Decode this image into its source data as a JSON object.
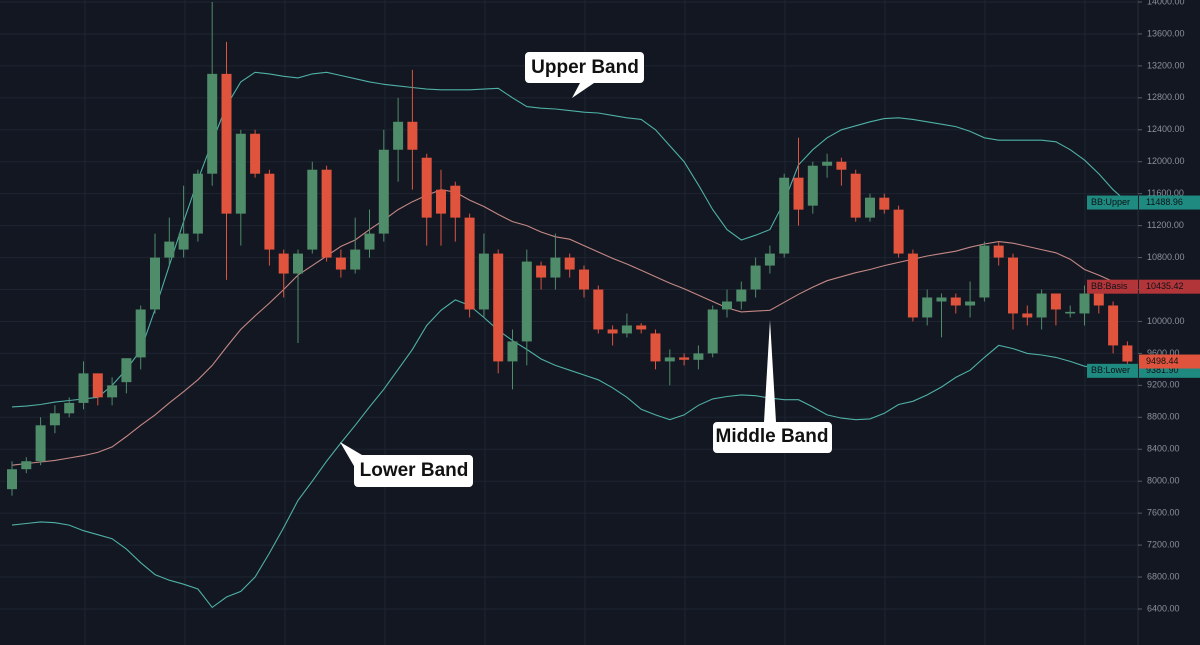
{
  "chart_data": {
    "type": "candlestick",
    "categories": [
      null,
      null,
      null,
      null,
      null,
      null,
      null,
      null,
      null,
      null,
      null,
      null,
      null,
      null,
      null,
      null,
      null,
      null,
      null,
      null,
      null,
      null,
      null,
      null,
      null,
      null,
      null,
      null,
      null,
      null,
      null,
      null,
      null,
      null,
      null,
      null,
      null,
      null,
      null,
      null,
      null,
      null,
      null,
      null,
      null,
      null,
      null,
      null,
      null,
      null,
      null,
      null,
      null,
      null,
      null,
      null,
      null,
      null,
      null,
      null,
      null,
      null,
      null,
      null,
      null,
      null,
      null,
      null,
      null,
      null,
      null,
      null,
      null,
      null,
      null,
      null,
      null,
      null,
      null
    ],
    "open": [
      7900,
      8150,
      8250,
      8700,
      8850,
      8980,
      9350,
      9050,
      9240,
      9550,
      10150,
      10800,
      10900,
      11100,
      11850,
      13100,
      11350,
      12350,
      11850,
      10850,
      10600,
      10900,
      11900,
      10800,
      10650,
      10900,
      11100,
      12150,
      12500,
      12050,
      11650,
      11700,
      11300,
      10150,
      10850,
      9500,
      9750,
      10700,
      10550,
      10800,
      10650,
      10400,
      9900,
      9850,
      9950,
      9850,
      9500,
      9550,
      9520,
      9600,
      10150,
      10250,
      10400,
      10700,
      10850,
      11800,
      11450,
      11950,
      12000,
      11850,
      11300,
      11550,
      11400,
      10850,
      10050,
      10250,
      10300,
      10200,
      10300,
      10950,
      10800,
      10100,
      10050,
      10350,
      10100,
      10100,
      10350,
      10200,
      9700
    ],
    "high": [
      8250,
      8300,
      8800,
      8950,
      9050,
      9500,
      9350,
      9300,
      9500,
      10200,
      11100,
      11300,
      11700,
      11900,
      14000,
      13500,
      12400,
      12400,
      11900,
      10900,
      10900,
      12000,
      11950,
      10900,
      11300,
      11400,
      12400,
      12800,
      13150,
      12100,
      11900,
      11750,
      11350,
      11100,
      10900,
      9900,
      10900,
      10750,
      11100,
      10850,
      10700,
      10450,
      9950,
      10100,
      9980,
      9900,
      9650,
      9600,
      9700,
      10200,
      10400,
      10500,
      10800,
      10950,
      11850,
      12300,
      12000,
      12100,
      12050,
      11900,
      11600,
      11600,
      11450,
      10900,
      10400,
      10350,
      10350,
      10500,
      11000,
      11000,
      10850,
      10200,
      10400,
      10350,
      10200,
      10450,
      10400,
      10250,
      9750
    ],
    "low": [
      7820,
      8100,
      8200,
      8600,
      8800,
      8900,
      8950,
      8950,
      9100,
      9400,
      10100,
      10700,
      10800,
      11000,
      11700,
      10520,
      10950,
      11800,
      10700,
      10300,
      9730,
      10850,
      10750,
      10550,
      10600,
      10800,
      11000,
      11750,
      11650,
      10950,
      10950,
      11000,
      10050,
      10050,
      9350,
      9150,
      9450,
      10400,
      10400,
      10550,
      10300,
      9850,
      9700,
      9800,
      9850,
      9400,
      9200,
      9450,
      9400,
      9550,
      10050,
      10150,
      10300,
      10600,
      10800,
      11200,
      11350,
      11800,
      11700,
      11250,
      11250,
      11350,
      10800,
      10000,
      9950,
      9800,
      10100,
      10050,
      10250,
      10700,
      9900,
      9950,
      9900,
      9950,
      10050,
      9950,
      10100,
      9600,
      9450
    ],
    "close": [
      8150,
      8250,
      8700,
      8850,
      8980,
      9350,
      9050,
      9200,
      9540,
      10150,
      10800,
      11000,
      11100,
      11850,
      13100,
      11350,
      12350,
      11850,
      10900,
      10600,
      10850,
      11900,
      10800,
      10650,
      10900,
      11100,
      12150,
      12500,
      12150,
      11300,
      11350,
      11300,
      10150,
      10850,
      9500,
      9750,
      10750,
      10550,
      10800,
      10650,
      10400,
      9900,
      9850,
      9950,
      9900,
      9500,
      9550,
      9520,
      9600,
      10150,
      10250,
      10400,
      10700,
      10850,
      11800,
      11400,
      11950,
      12000,
      11900,
      11300,
      11550,
      11400,
      10850,
      10050,
      10300,
      10300,
      10200,
      10250,
      10950,
      10800,
      10100,
      10050,
      10350,
      10150,
      10120,
      10350,
      10200,
      9700,
      9498.44
    ],
    "up_color": "#4f8c69",
    "down_color": "#e0533d",
    "bands": [
      {
        "name": "BB:Upper",
        "color": "#4fb0a6",
        "tag_color": "#1f8a80",
        "values": [
          8930,
          8940,
          8960,
          8990,
          9010,
          9030,
          9050,
          9200,
          9400,
          9640,
          10150,
          10700,
          11250,
          11770,
          12250,
          12700,
          13000,
          13120,
          13100,
          13070,
          13050,
          13100,
          13120,
          13080,
          13040,
          13000,
          12970,
          12950,
          12930,
          12910,
          12900,
          12900,
          12900,
          12910,
          12920,
          12800,
          12690,
          12670,
          12660,
          12640,
          12620,
          12610,
          12580,
          12550,
          12530,
          12400,
          12200,
          12000,
          11710,
          11400,
          11150,
          11020,
          11080,
          11150,
          11500,
          11960,
          12150,
          12300,
          12400,
          12450,
          12500,
          12540,
          12550,
          12530,
          12500,
          12470,
          12440,
          12380,
          12300,
          12270,
          12270,
          12270,
          12270,
          12250,
          12150,
          12020,
          11850,
          11650,
          11488.96
        ]
      },
      {
        "name": "BB:Basis",
        "color": "#c48884",
        "tag_color": "#b2353a",
        "values": [
          8200,
          8220,
          8240,
          8260,
          8290,
          8320,
          8360,
          8430,
          8560,
          8700,
          8830,
          8980,
          9120,
          9270,
          9450,
          9680,
          9900,
          10070,
          10230,
          10400,
          10580,
          10700,
          10820,
          10940,
          11020,
          11150,
          11270,
          11400,
          11500,
          11580,
          11650,
          11620,
          11520,
          11440,
          11340,
          11250,
          11200,
          11120,
          11060,
          11030,
          10950,
          10870,
          10790,
          10720,
          10640,
          10560,
          10480,
          10410,
          10330,
          10250,
          10170,
          10120,
          10130,
          10140,
          10240,
          10340,
          10430,
          10510,
          10560,
          10610,
          10650,
          10700,
          10740,
          10780,
          10820,
          10850,
          10880,
          10930,
          10970,
          11000,
          10980,
          10940,
          10900,
          10860,
          10780,
          10650,
          10580,
          10500,
          10435.42
        ]
      },
      {
        "name": "BB:Lower",
        "color": "#4fb0a6",
        "tag_color": "#1f8a80",
        "tag_label": "9381.90",
        "values": [
          7450,
          7470,
          7490,
          7480,
          7450,
          7380,
          7330,
          7280,
          7150,
          6980,
          6830,
          6760,
          6710,
          6650,
          6420,
          6550,
          6620,
          6800,
          7100,
          7420,
          7760,
          8000,
          8250,
          8480,
          8700,
          8930,
          9150,
          9400,
          9650,
          9950,
          10140,
          10270,
          10200,
          10050,
          9890,
          9760,
          9650,
          9530,
          9450,
          9390,
          9330,
          9270,
          9170,
          9050,
          8900,
          8830,
          8770,
          8830,
          8950,
          9030,
          9060,
          9080,
          9070,
          9040,
          9020,
          9020,
          8930,
          8830,
          8790,
          8770,
          8780,
          8850,
          8960,
          9000,
          9080,
          9180,
          9300,
          9390,
          9550,
          9700,
          9660,
          9600,
          9580,
          9550,
          9500,
          9440,
          9410,
          9390,
          9381.9
        ]
      }
    ],
    "ylim": [
      5949,
      14025
    ],
    "yticks": [
      {
        "value": 6400,
        "label": "6400.00"
      },
      {
        "value": 6800,
        "label": "6800.00"
      },
      {
        "value": 7200,
        "label": "7200.00"
      },
      {
        "value": 7600,
        "label": "7600.00"
      },
      {
        "value": 8000,
        "label": "8000.00"
      },
      {
        "value": 8400,
        "label": "8400.00"
      },
      {
        "value": 8800,
        "label": "8800.00"
      },
      {
        "value": 9200,
        "label": "9200.00"
      },
      {
        "value": 9600,
        "label": "9600.00"
      },
      {
        "value": 10000,
        "label": "10000.00"
      },
      {
        "value": 10400,
        "label": "10400.00"
      },
      {
        "value": 10800,
        "label": "10800.00"
      },
      {
        "value": 11200,
        "label": "11200.00"
      },
      {
        "value": 11600,
        "label": "11600.00"
      },
      {
        "value": 12000,
        "label": "12000.00"
      },
      {
        "value": 12400,
        "label": "12400.00"
      },
      {
        "value": 12800,
        "label": "12800.00"
      },
      {
        "value": 13200,
        "label": "13200.00"
      },
      {
        "value": 13600,
        "label": "13600.00"
      },
      {
        "value": 14000,
        "label": "14000.00"
      }
    ],
    "grid": true,
    "annotations": [
      "Upper Band",
      "Lower Band",
      "Middle Band"
    ]
  }
}
